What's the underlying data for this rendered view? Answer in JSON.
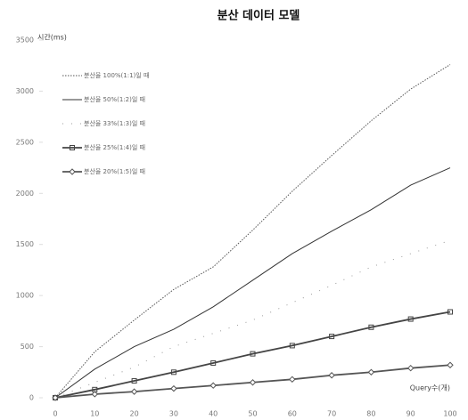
{
  "chart_data": {
    "type": "line",
    "title": "분산 데이터 모델",
    "ylabel": "시간(ms)",
    "xlabel": "Query수(개)",
    "categories": [
      "0",
      "10",
      "20",
      "30",
      "40",
      "50",
      "60",
      "70",
      "80",
      "90",
      "100"
    ],
    "ylim": [
      0,
      3500
    ],
    "yticks": [
      0,
      500,
      1000,
      1500,
      2000,
      2500,
      3000,
      3500
    ],
    "grid": false,
    "legend": "top-left",
    "series": [
      {
        "name": "분산율 100%(1:1)일 때",
        "color": "#555555",
        "style": "dotted",
        "marker": "none",
        "values": [
          0,
          450,
          760,
          1060,
          1280,
          1640,
          2020,
          2370,
          2710,
          3020,
          3260
        ]
      },
      {
        "name": "분산율 50%(1:2)일 때",
        "color": "#333333",
        "style": "solid",
        "marker": "none",
        "values": [
          0,
          280,
          500,
          670,
          890,
          1150,
          1410,
          1630,
          1840,
          2080,
          2250
        ]
      },
      {
        "name": "분산율 33%(1:3)일 때",
        "color": "#999999",
        "style": "sparse",
        "marker": "none",
        "values": [
          0,
          150,
          300,
          500,
          630,
          760,
          930,
          1100,
          1280,
          1410,
          1540
        ]
      },
      {
        "name": "분산율 25%(1:4)일 때",
        "color": "#444444",
        "style": "solid",
        "marker": "square",
        "values": [
          0,
          80,
          165,
          250,
          340,
          430,
          510,
          600,
          690,
          770,
          840
        ]
      },
      {
        "name": "분산율 20%(1:5)일 때",
        "color": "#555555",
        "style": "solid",
        "marker": "diamond",
        "values": [
          0,
          35,
          60,
          90,
          120,
          150,
          180,
          220,
          250,
          290,
          320
        ]
      }
    ]
  }
}
